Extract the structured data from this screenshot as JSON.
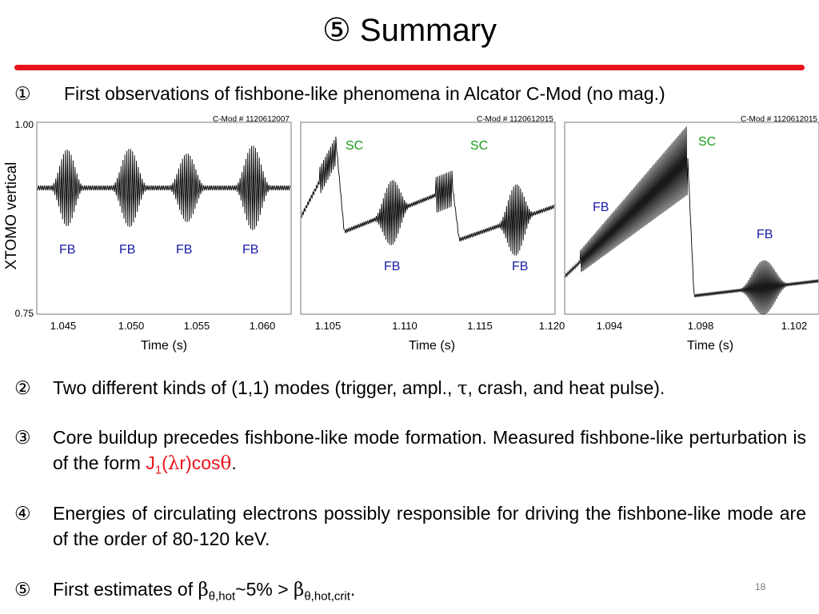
{
  "slide": {
    "title": "⑤ Summary",
    "page_number": "18"
  },
  "bullets": [
    {
      "num": "①",
      "text": "First observations of fishbone-like phenomena in Alcator C-Mod (no mag.)"
    },
    {
      "num": "②",
      "text_before": "Two different kinds of (1,1) modes (trigger, ampl., ",
      "tau": "τ",
      "text_after": ", crash, and heat pulse)."
    },
    {
      "num": "③",
      "text_before": "Core buildup precedes fishbone-like mode formation. Measured fishbone-like perturbation is of the form ",
      "formula_j": "J",
      "formula_sub": "1",
      "formula_open": "(",
      "formula_lambda": "λ",
      "formula_r": "r)cos",
      "formula_theta": "θ",
      "text_after": "."
    },
    {
      "num": "④",
      "text": "Energies of circulating electrons possibly responsible for driving the fishbone-like mode are of the order of 80-120 keV."
    },
    {
      "num": "⑤",
      "text_before": "First estimates of ",
      "beta1": "β",
      "sub1": "θ,hot",
      "middle": "~5% > ",
      "beta2": "β",
      "sub2": "θ,hot,crit",
      "text_after": "."
    }
  ],
  "figure": {
    "ylabel": "XTOMO vertical",
    "y_top_label": "1.00",
    "y_bottom_label": "0.75",
    "panels": [
      {
        "shot": "C-Mod # 1120612007",
        "xlabel": "Time (s)",
        "xticks": [
          "1.045",
          "1.050",
          "1.055",
          "1.060"
        ],
        "labels": [
          "FB",
          "FB",
          "FB",
          "FB"
        ]
      },
      {
        "shot": "C-Mod # 1120612015",
        "xlabel": "Time (s)",
        "xticks": [
          "1.105",
          "1.110",
          "1.115",
          "1.120"
        ],
        "labels": [
          "SC",
          "SC",
          "FB",
          "FB"
        ]
      },
      {
        "shot": "C-Mod # 1120612015",
        "xlabel": "Time (s)",
        "xticks": [
          "1.094",
          "1.098",
          "1.102"
        ],
        "labels": [
          "SC",
          "FB",
          "FB"
        ]
      }
    ],
    "colors": {
      "fb": "#1a1aa6",
      "sc": "#1a9a1a",
      "trace": "#000000"
    }
  },
  "colors": {
    "accent": "#e8141b"
  }
}
